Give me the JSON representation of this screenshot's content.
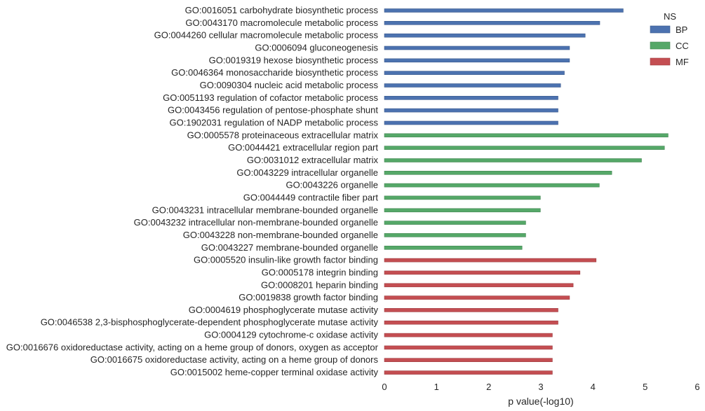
{
  "chart_data": {
    "type": "bar",
    "orientation": "horizontal",
    "xlabel": "p value(-log10)",
    "xlim": [
      0,
      6
    ],
    "xticks": [
      "0",
      "1",
      "2",
      "3",
      "4",
      "5",
      "6"
    ],
    "grid": false,
    "legend": {
      "title": "NS",
      "placement": "top-right",
      "entries": [
        {
          "name": "BP",
          "color": "#4c72b0"
        },
        {
          "name": "CC",
          "color": "#55a868"
        },
        {
          "name": "MF",
          "color": "#c44e52"
        }
      ]
    },
    "categories": [
      "GO:0016051 carbohydrate biosynthetic process",
      "GO:0043170 macromolecule metabolic process",
      "GO:0044260 cellular macromolecule metabolic process",
      "GO:0006094 gluconeogenesis",
      "GO:0019319 hexose biosynthetic process",
      "GO:0046364 monosaccharide biosynthetic process",
      "GO:0090304 nucleic acid metabolic process",
      "GO:0051193 regulation of cofactor metabolic process",
      "GO:0043456 regulation of pentose-phosphate shunt",
      "GO:1902031 regulation of NADP metabolic process",
      "GO:0005578 proteinaceous extracellular matrix",
      "GO:0044421 extracellular region part",
      "GO:0031012 extracellular matrix",
      "GO:0043229 intracellular organelle",
      "GO:0043226 organelle",
      "GO:0044449 contractile fiber part",
      "GO:0043231 intracellular membrane-bounded organelle",
      "GO:0043232 intracellular non-membrane-bounded organelle",
      "GO:0043228 non-membrane-bounded organelle",
      "GO:0043227 membrane-bounded organelle",
      "GO:0005520 insulin-like growth factor binding",
      "GO:0005178 integrin binding",
      "GO:0008201 heparin binding",
      "GO:0019838 growth factor binding",
      "GO:0004619 phosphoglycerate mutase activity",
      "GO:0046538 2,3-bisphosphoglycerate-dependent phosphoglycerate mutase activity",
      "GO:0004129 cytochrome-c oxidase activity",
      "GO:0016676 oxidoreductase activity, acting on a heme group of donors, oxygen as acceptor",
      "GO:0016675 oxidoreductase activity, acting on a heme group of donors",
      "GO:0015002 heme-copper terminal oxidase activity"
    ],
    "series_by_bar": [
      "BP",
      "BP",
      "BP",
      "BP",
      "BP",
      "BP",
      "BP",
      "BP",
      "BP",
      "BP",
      "CC",
      "CC",
      "CC",
      "CC",
      "CC",
      "CC",
      "CC",
      "CC",
      "CC",
      "CC",
      "MF",
      "MF",
      "MF",
      "MF",
      "MF",
      "MF",
      "MF",
      "MF",
      "MF",
      "MF"
    ],
    "values": [
      4.58,
      4.13,
      3.85,
      3.55,
      3.55,
      3.45,
      3.38,
      3.33,
      3.33,
      3.33,
      5.44,
      5.37,
      4.93,
      4.36,
      4.12,
      2.99,
      2.99,
      2.71,
      2.71,
      2.64,
      4.06,
      3.75,
      3.62,
      3.55,
      3.33,
      3.33,
      3.22,
      3.22,
      3.22,
      3.22
    ]
  }
}
